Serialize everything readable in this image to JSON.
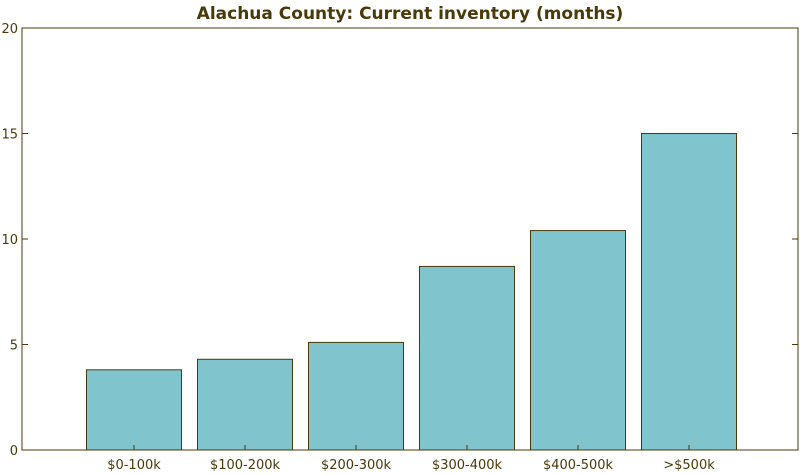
{
  "chart_data": {
    "type": "bar",
    "title": "Alachua County: Current inventory (months)",
    "xlabel": "",
    "ylabel": "",
    "categories": [
      "$0-100k",
      "$100-200k",
      "$200-300k",
      "$300-400k",
      "$400-500k",
      ">$500k"
    ],
    "values": [
      3.8,
      4.3,
      5.1,
      8.7,
      10.4,
      15.0
    ],
    "ylim": [
      0,
      20
    ],
    "yticks": [
      0,
      5,
      10,
      15,
      20
    ],
    "grid": false,
    "legend": "none",
    "colors": {
      "bar_fill": "#80c4ce",
      "bar_stroke": "#4a3a0a",
      "axis": "#4a3a0a",
      "text": "#4a3a0a"
    }
  }
}
